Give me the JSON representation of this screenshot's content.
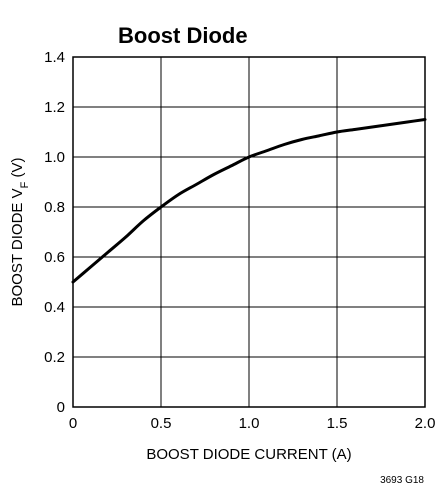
{
  "chart_data": {
    "type": "line",
    "title": "Boost Diode",
    "xlabel": "BOOST DIODE CURRENT (A)",
    "ylabel_main": "BOOST DIODE V",
    "ylabel_sub": "F",
    "ylabel_unit": " (V)",
    "xlim": [
      0,
      2.0
    ],
    "ylim": [
      0,
      1.4
    ],
    "x_ticks": [
      "0",
      "0.5",
      "1.0",
      "1.5",
      "2.0"
    ],
    "y_ticks": [
      "0",
      "0.2",
      "0.4",
      "0.6",
      "0.8",
      "1.0",
      "1.2",
      "1.4"
    ],
    "x_tick_values": [
      0,
      0.5,
      1.0,
      1.5,
      2.0
    ],
    "y_tick_values": [
      0,
      0.2,
      0.4,
      0.6,
      0.8,
      1.0,
      1.2,
      1.4
    ],
    "grid": true,
    "series": [
      {
        "x": [
          0,
          0.1,
          0.2,
          0.3,
          0.4,
          0.5,
          0.6,
          0.7,
          0.8,
          0.9,
          1.0,
          1.1,
          1.2,
          1.3,
          1.4,
          1.5,
          1.6,
          1.7,
          1.8,
          1.9,
          2.0
        ],
        "y": [
          0.5,
          0.56,
          0.62,
          0.68,
          0.745,
          0.8,
          0.85,
          0.89,
          0.93,
          0.965,
          1.0,
          1.025,
          1.05,
          1.07,
          1.085,
          1.1,
          1.11,
          1.12,
          1.13,
          1.14,
          1.15
        ]
      }
    ],
    "figure_id": "3693 G18"
  }
}
